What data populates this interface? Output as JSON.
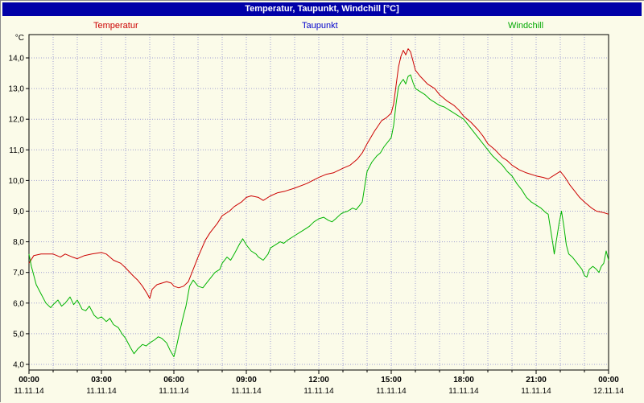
{
  "window": {
    "title": "Temperatur, Taupunkt, Windchill [°C]"
  },
  "legend": {
    "items": [
      {
        "label": "Temperatur",
        "color": "#cc0000"
      },
      {
        "label": "Taupunkt",
        "color": "#0000cc"
      },
      {
        "label": "Windchill",
        "color": "#00a800"
      }
    ]
  },
  "colors": {
    "background": "#fbfbe9",
    "titlebar": "#0000a8",
    "titlebar_text": "#ffffff",
    "grid": "#9f9fd2",
    "border": "#000000",
    "temperatur": "#cc0000",
    "taupunkt": "#0000cc",
    "windchill": "#00b400"
  },
  "chart_data": {
    "type": "line",
    "title": "Temperatur, Taupunkt, Windchill [°C]",
    "ylabel": "°C",
    "xlabel": "",
    "grid": "dotted, hourly vertical lines, 1°C horizontal lines",
    "legend_position": "top",
    "x_unit": "hours",
    "x_range_hours": [
      0,
      24
    ],
    "y_range": [
      3.8,
      14.8
    ],
    "y_ticks": [
      {
        "v": 14,
        "label": "14,0"
      },
      {
        "v": 13,
        "label": "13,0"
      },
      {
        "v": 12,
        "label": "12,0"
      },
      {
        "v": 11,
        "label": "11,0"
      },
      {
        "v": 10,
        "label": "10,0"
      },
      {
        "v": 9,
        "label": "9,0"
      },
      {
        "v": 8,
        "label": "8,0"
      },
      {
        "v": 7,
        "label": "7,0"
      },
      {
        "v": 6,
        "label": "6,0"
      },
      {
        "v": 5,
        "label": "5,0"
      },
      {
        "v": 4,
        "label": "4,0"
      }
    ],
    "x_ticks": [
      {
        "h": 0,
        "time": "00:00",
        "date": "11.11.14"
      },
      {
        "h": 3,
        "time": "03:00",
        "date": "11.11.14"
      },
      {
        "h": 6,
        "time": "06:00",
        "date": "11.11.14"
      },
      {
        "h": 9,
        "time": "09:00",
        "date": "11.11.14"
      },
      {
        "h": 12,
        "time": "12:00",
        "date": "11.11.14"
      },
      {
        "h": 15,
        "time": "15:00",
        "date": "11.11.14"
      },
      {
        "h": 18,
        "time": "18:00",
        "date": "11.11.14"
      },
      {
        "h": 21,
        "time": "21:00",
        "date": "11.11.14"
      },
      {
        "h": 24,
        "time": "00:00",
        "date": "12.11.14"
      }
    ],
    "series": [
      {
        "name": "Temperatur",
        "color_key": "temperatur",
        "points": [
          [
            0,
            7.3
          ],
          [
            0.2,
            7.55
          ],
          [
            0.5,
            7.6
          ],
          [
            0.8,
            7.6
          ],
          [
            1,
            7.6
          ],
          [
            1.3,
            7.5
          ],
          [
            1.5,
            7.6
          ],
          [
            1.8,
            7.5
          ],
          [
            2,
            7.45
          ],
          [
            2.3,
            7.55
          ],
          [
            2.6,
            7.6
          ],
          [
            3,
            7.65
          ],
          [
            3.2,
            7.6
          ],
          [
            3.5,
            7.4
          ],
          [
            3.8,
            7.3
          ],
          [
            4,
            7.15
          ],
          [
            4.3,
            6.9
          ],
          [
            4.5,
            6.75
          ],
          [
            4.7,
            6.55
          ],
          [
            4.9,
            6.3
          ],
          [
            5,
            6.15
          ],
          [
            5.1,
            6.45
          ],
          [
            5.3,
            6.6
          ],
          [
            5.5,
            6.65
          ],
          [
            5.7,
            6.7
          ],
          [
            5.9,
            6.65
          ],
          [
            6,
            6.55
          ],
          [
            6.2,
            6.5
          ],
          [
            6.4,
            6.55
          ],
          [
            6.6,
            6.7
          ],
          [
            6.8,
            7.1
          ],
          [
            7,
            7.5
          ],
          [
            7.3,
            8.05
          ],
          [
            7.5,
            8.3
          ],
          [
            7.8,
            8.6
          ],
          [
            8,
            8.85
          ],
          [
            8.3,
            9.0
          ],
          [
            8.5,
            9.15
          ],
          [
            8.8,
            9.3
          ],
          [
            9,
            9.45
          ],
          [
            9.2,
            9.5
          ],
          [
            9.5,
            9.45
          ],
          [
            9.7,
            9.35
          ],
          [
            10,
            9.5
          ],
          [
            10.3,
            9.6
          ],
          [
            10.6,
            9.65
          ],
          [
            11,
            9.75
          ],
          [
            11.5,
            9.9
          ],
          [
            12,
            10.1
          ],
          [
            12.3,
            10.2
          ],
          [
            12.6,
            10.25
          ],
          [
            13,
            10.4
          ],
          [
            13.3,
            10.5
          ],
          [
            13.6,
            10.7
          ],
          [
            13.8,
            10.9
          ],
          [
            14,
            11.2
          ],
          [
            14.3,
            11.6
          ],
          [
            14.6,
            11.95
          ],
          [
            14.8,
            12.05
          ],
          [
            15,
            12.2
          ],
          [
            15.1,
            12.5
          ],
          [
            15.2,
            13.1
          ],
          [
            15.3,
            13.7
          ],
          [
            15.4,
            14.05
          ],
          [
            15.5,
            14.25
          ],
          [
            15.6,
            14.1
          ],
          [
            15.7,
            14.3
          ],
          [
            15.8,
            14.2
          ],
          [
            15.9,
            13.9
          ],
          [
            16,
            13.6
          ],
          [
            16.2,
            13.4
          ],
          [
            16.5,
            13.15
          ],
          [
            16.8,
            13.0
          ],
          [
            17,
            12.8
          ],
          [
            17.3,
            12.6
          ],
          [
            17.6,
            12.45
          ],
          [
            17.8,
            12.3
          ],
          [
            18,
            12.1
          ],
          [
            18.3,
            11.9
          ],
          [
            18.6,
            11.65
          ],
          [
            18.8,
            11.45
          ],
          [
            19,
            11.2
          ],
          [
            19.3,
            11.0
          ],
          [
            19.6,
            10.75
          ],
          [
            19.8,
            10.65
          ],
          [
            20,
            10.5
          ],
          [
            20.3,
            10.35
          ],
          [
            20.6,
            10.25
          ],
          [
            21,
            10.15
          ],
          [
            21.3,
            10.1
          ],
          [
            21.5,
            10.05
          ],
          [
            21.8,
            10.2
          ],
          [
            22,
            10.3
          ],
          [
            22.2,
            10.1
          ],
          [
            22.4,
            9.85
          ],
          [
            22.6,
            9.65
          ],
          [
            22.8,
            9.45
          ],
          [
            23,
            9.3
          ],
          [
            23.3,
            9.1
          ],
          [
            23.5,
            9.0
          ],
          [
            23.8,
            8.95
          ],
          [
            24,
            8.9
          ]
        ]
      },
      {
        "name": "Taupunkt",
        "color_key": "taupunkt",
        "points": []
      },
      {
        "name": "Windchill",
        "color_key": "windchill",
        "points": [
          [
            0,
            7.6
          ],
          [
            0.1,
            7.2
          ],
          [
            0.3,
            6.6
          ],
          [
            0.5,
            6.3
          ],
          [
            0.7,
            6.0
          ],
          [
            0.9,
            5.85
          ],
          [
            1,
            5.95
          ],
          [
            1.2,
            6.1
          ],
          [
            1.35,
            5.9
          ],
          [
            1.5,
            6.0
          ],
          [
            1.7,
            6.2
          ],
          [
            1.85,
            5.95
          ],
          [
            2,
            6.1
          ],
          [
            2.2,
            5.8
          ],
          [
            2.35,
            5.75
          ],
          [
            2.5,
            5.9
          ],
          [
            2.7,
            5.6
          ],
          [
            2.85,
            5.5
          ],
          [
            3,
            5.55
          ],
          [
            3.2,
            5.4
          ],
          [
            3.35,
            5.5
          ],
          [
            3.5,
            5.3
          ],
          [
            3.7,
            5.2
          ],
          [
            3.85,
            5.0
          ],
          [
            4,
            4.85
          ],
          [
            4.2,
            4.55
          ],
          [
            4.35,
            4.35
          ],
          [
            4.5,
            4.5
          ],
          [
            4.7,
            4.65
          ],
          [
            4.85,
            4.6
          ],
          [
            5,
            4.7
          ],
          [
            5.2,
            4.8
          ],
          [
            5.35,
            4.9
          ],
          [
            5.5,
            4.85
          ],
          [
            5.7,
            4.7
          ],
          [
            5.85,
            4.45
          ],
          [
            6,
            4.25
          ],
          [
            6.1,
            4.55
          ],
          [
            6.25,
            5.1
          ],
          [
            6.4,
            5.6
          ],
          [
            6.5,
            5.9
          ],
          [
            6.65,
            6.55
          ],
          [
            6.8,
            6.75
          ],
          [
            7,
            6.55
          ],
          [
            7.2,
            6.5
          ],
          [
            7.4,
            6.7
          ],
          [
            7.5,
            6.8
          ],
          [
            7.7,
            7.0
          ],
          [
            7.9,
            7.1
          ],
          [
            8,
            7.3
          ],
          [
            8.2,
            7.5
          ],
          [
            8.35,
            7.4
          ],
          [
            8.5,
            7.6
          ],
          [
            8.7,
            7.9
          ],
          [
            8.85,
            8.1
          ],
          [
            9,
            7.9
          ],
          [
            9.2,
            7.7
          ],
          [
            9.4,
            7.6
          ],
          [
            9.5,
            7.5
          ],
          [
            9.7,
            7.4
          ],
          [
            9.9,
            7.6
          ],
          [
            10,
            7.8
          ],
          [
            10.2,
            7.9
          ],
          [
            10.4,
            8.0
          ],
          [
            10.55,
            7.95
          ],
          [
            10.7,
            8.05
          ],
          [
            11,
            8.2
          ],
          [
            11.2,
            8.3
          ],
          [
            11.4,
            8.4
          ],
          [
            11.6,
            8.5
          ],
          [
            11.8,
            8.65
          ],
          [
            12,
            8.75
          ],
          [
            12.2,
            8.8
          ],
          [
            12.4,
            8.7
          ],
          [
            12.55,
            8.65
          ],
          [
            12.7,
            8.75
          ],
          [
            12.9,
            8.9
          ],
          [
            13,
            8.95
          ],
          [
            13.2,
            9.0
          ],
          [
            13.4,
            9.1
          ],
          [
            13.55,
            9.05
          ],
          [
            13.7,
            9.2
          ],
          [
            13.8,
            9.3
          ],
          [
            13.9,
            9.8
          ],
          [
            14,
            10.3
          ],
          [
            14.2,
            10.6
          ],
          [
            14.4,
            10.8
          ],
          [
            14.55,
            10.9
          ],
          [
            14.7,
            11.1
          ],
          [
            14.9,
            11.3
          ],
          [
            15,
            11.4
          ],
          [
            15.1,
            11.8
          ],
          [
            15.2,
            12.5
          ],
          [
            15.3,
            13.05
          ],
          [
            15.4,
            13.2
          ],
          [
            15.5,
            13.3
          ],
          [
            15.6,
            13.15
          ],
          [
            15.7,
            13.4
          ],
          [
            15.8,
            13.45
          ],
          [
            15.9,
            13.2
          ],
          [
            16,
            13.0
          ],
          [
            16.2,
            12.9
          ],
          [
            16.4,
            12.8
          ],
          [
            16.6,
            12.65
          ],
          [
            16.8,
            12.55
          ],
          [
            17,
            12.45
          ],
          [
            17.2,
            12.4
          ],
          [
            17.4,
            12.3
          ],
          [
            17.6,
            12.2
          ],
          [
            17.8,
            12.1
          ],
          [
            18,
            12.0
          ],
          [
            18.2,
            11.8
          ],
          [
            18.4,
            11.6
          ],
          [
            18.6,
            11.4
          ],
          [
            18.8,
            11.2
          ],
          [
            19,
            11.0
          ],
          [
            19.2,
            10.8
          ],
          [
            19.4,
            10.65
          ],
          [
            19.6,
            10.5
          ],
          [
            19.8,
            10.3
          ],
          [
            20,
            10.15
          ],
          [
            20.2,
            9.9
          ],
          [
            20.4,
            9.7
          ],
          [
            20.6,
            9.45
          ],
          [
            20.8,
            9.3
          ],
          [
            21,
            9.2
          ],
          [
            21.2,
            9.1
          ],
          [
            21.4,
            8.95
          ],
          [
            21.5,
            8.9
          ],
          [
            21.6,
            8.4
          ],
          [
            21.7,
            7.9
          ],
          [
            21.75,
            7.6
          ],
          [
            21.85,
            8.1
          ],
          [
            21.95,
            8.6
          ],
          [
            22.05,
            9.0
          ],
          [
            22.15,
            8.5
          ],
          [
            22.25,
            7.9
          ],
          [
            22.35,
            7.6
          ],
          [
            22.5,
            7.5
          ],
          [
            22.7,
            7.3
          ],
          [
            22.9,
            7.1
          ],
          [
            23,
            6.9
          ],
          [
            23.1,
            6.85
          ],
          [
            23.2,
            7.1
          ],
          [
            23.35,
            7.2
          ],
          [
            23.5,
            7.1
          ],
          [
            23.6,
            7.0
          ],
          [
            23.7,
            7.2
          ],
          [
            23.8,
            7.3
          ],
          [
            23.9,
            7.7
          ],
          [
            24,
            7.4
          ]
        ]
      }
    ]
  }
}
